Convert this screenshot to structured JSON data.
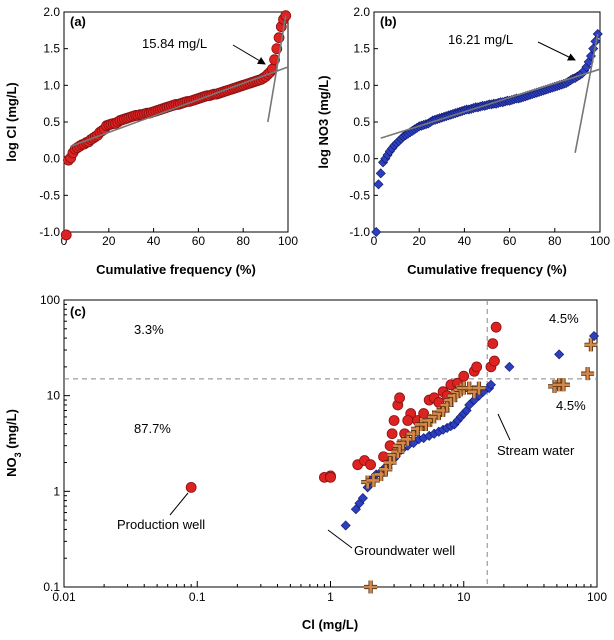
{
  "chart_data": [
    {
      "panel": "(a)",
      "type": "scatter",
      "xlabel": "Cumulative frequency (%)",
      "ylabel": "log Cl (mg/L)",
      "xlim": [
        0,
        100
      ],
      "ylim": [
        -1.0,
        2.0
      ],
      "xticks": [
        "0",
        "20",
        "40",
        "60",
        "80",
        "100"
      ],
      "yticks": [
        "-1.0",
        "-0.5",
        "0.0",
        "0.5",
        "1.0",
        "1.5",
        "2.0"
      ],
      "marker": "circle",
      "color": "#dd2222",
      "x": [
        1,
        2,
        3,
        4,
        5,
        6,
        7,
        8,
        9,
        10,
        11,
        12,
        13,
        14,
        15,
        16,
        17,
        18,
        19,
        20,
        21,
        22,
        23,
        24,
        25,
        26,
        27,
        28,
        29,
        30,
        31,
        32,
        33,
        34,
        35,
        36,
        37,
        38,
        39,
        40,
        41,
        42,
        43,
        44,
        45,
        46,
        47,
        48,
        49,
        50,
        51,
        52,
        53,
        54,
        55,
        56,
        57,
        58,
        59,
        60,
        61,
        62,
        63,
        64,
        65,
        66,
        67,
        68,
        69,
        70,
        71,
        72,
        73,
        74,
        75,
        76,
        77,
        78,
        79,
        80,
        81,
        82,
        83,
        84,
        85,
        86,
        87,
        88,
        89,
        90,
        91,
        92,
        93,
        94,
        95,
        96,
        97,
        98,
        99
      ],
      "y": [
        -1.04,
        -0.02,
        0.01,
        0.08,
        0.13,
        0.15,
        0.17,
        0.19,
        0.2,
        0.22,
        0.23,
        0.26,
        0.28,
        0.3,
        0.32,
        0.36,
        0.38,
        0.4,
        0.45,
        0.46,
        0.47,
        0.48,
        0.48,
        0.5,
        0.52,
        0.53,
        0.54,
        0.55,
        0.56,
        0.57,
        0.58,
        0.59,
        0.59,
        0.6,
        0.6,
        0.61,
        0.62,
        0.62,
        0.63,
        0.64,
        0.65,
        0.66,
        0.67,
        0.68,
        0.69,
        0.7,
        0.71,
        0.72,
        0.73,
        0.74,
        0.74,
        0.75,
        0.76,
        0.77,
        0.78,
        0.78,
        0.79,
        0.8,
        0.81,
        0.82,
        0.83,
        0.84,
        0.85,
        0.86,
        0.86,
        0.87,
        0.88,
        0.88,
        0.89,
        0.9,
        0.91,
        0.92,
        0.93,
        0.94,
        0.95,
        0.96,
        0.97,
        0.98,
        0.99,
        1.0,
        1.01,
        1.02,
        1.03,
        1.04,
        1.05,
        1.06,
        1.07,
        1.08,
        1.1,
        1.12,
        1.15,
        1.18,
        1.22,
        1.35,
        1.5,
        1.65,
        1.8,
        1.9,
        1.95
      ],
      "fit_lines": [
        {
          "x": [
            3,
            100
          ],
          "y": [
            0.17,
            1.25
          ]
        },
        {
          "x": [
            91,
            99
          ],
          "y": [
            0.5,
            1.95
          ]
        }
      ],
      "annotation": {
        "text": "15.84 mg/L",
        "x": 93,
        "y": 1.2
      }
    },
    {
      "panel": "(b)",
      "type": "scatter",
      "xlabel": "Cumulative frequency (%)",
      "ylabel": "log NO3 (mg/L)",
      "xlim": [
        0,
        100
      ],
      "ylim": [
        -1.0,
        2.0
      ],
      "xticks": [
        "0",
        "20",
        "40",
        "60",
        "80",
        "100"
      ],
      "yticks": [
        "-1.0",
        "-0.5",
        "0.0",
        "0.5",
        "1.0",
        "1.5",
        "2.0"
      ],
      "marker": "diamond",
      "color": "#2c3fbf",
      "x": [
        1,
        2,
        3,
        4,
        5,
        6,
        7,
        8,
        9,
        10,
        11,
        12,
        13,
        14,
        15,
        16,
        17,
        18,
        19,
        20,
        21,
        22,
        23,
        24,
        25,
        26,
        27,
        28,
        29,
        30,
        31,
        32,
        33,
        34,
        35,
        36,
        37,
        38,
        39,
        40,
        41,
        42,
        43,
        44,
        45,
        46,
        47,
        48,
        49,
        50,
        51,
        52,
        53,
        54,
        55,
        56,
        57,
        58,
        59,
        60,
        61,
        62,
        63,
        64,
        65,
        66,
        67,
        68,
        69,
        70,
        71,
        72,
        73,
        74,
        75,
        76,
        77,
        78,
        79,
        80,
        81,
        82,
        83,
        84,
        85,
        86,
        87,
        88,
        89,
        90,
        91,
        92,
        93,
        94,
        95,
        96,
        97,
        98,
        99
      ],
      "y": [
        -1.0,
        -0.35,
        -0.2,
        -0.05,
        0.0,
        0.05,
        0.1,
        0.14,
        0.18,
        0.21,
        0.24,
        0.27,
        0.3,
        0.32,
        0.34,
        0.36,
        0.38,
        0.4,
        0.42,
        0.44,
        0.45,
        0.46,
        0.47,
        0.48,
        0.5,
        0.52,
        0.53,
        0.54,
        0.55,
        0.56,
        0.57,
        0.58,
        0.59,
        0.6,
        0.61,
        0.62,
        0.63,
        0.64,
        0.65,
        0.66,
        0.67,
        0.67,
        0.68,
        0.69,
        0.7,
        0.7,
        0.71,
        0.72,
        0.72,
        0.73,
        0.74,
        0.74,
        0.75,
        0.75,
        0.76,
        0.77,
        0.77,
        0.78,
        0.79,
        0.79,
        0.8,
        0.81,
        0.82,
        0.82,
        0.83,
        0.84,
        0.85,
        0.86,
        0.87,
        0.88,
        0.89,
        0.9,
        0.91,
        0.92,
        0.93,
        0.94,
        0.95,
        0.96,
        0.97,
        0.98,
        0.99,
        1.0,
        1.01,
        1.02,
        1.03,
        1.05,
        1.07,
        1.09,
        1.1,
        1.12,
        1.14,
        1.16,
        1.2,
        1.25,
        1.32,
        1.4,
        1.5,
        1.6,
        1.7
      ],
      "fit_lines": [
        {
          "x": [
            3,
            100
          ],
          "y": [
            0.28,
            1.22
          ]
        },
        {
          "x": [
            89,
            99
          ],
          "y": [
            0.08,
            1.7
          ]
        }
      ],
      "annotation": {
        "text": "16.21 mg/L",
        "x": 92,
        "y": 1.18
      }
    },
    {
      "panel": "(c)",
      "type": "scatter",
      "xscale": "log",
      "yscale": "log",
      "xlabel": "Cl (mg/L)",
      "ylabel_main": "NO",
      "ylabel_sub": "3",
      "ylabel_unit": " (mg/L)",
      "xlim": [
        0.01,
        100
      ],
      "ylim": [
        0.1,
        100
      ],
      "xticks": [
        "0.01",
        "0.1",
        "1",
        "10",
        "100"
      ],
      "yticks": [
        "0.1",
        "1",
        "10",
        "100"
      ],
      "thresholds": {
        "x": 15,
        "y": 15
      },
      "quadrant_labels": [
        "3.3%",
        "87.7%",
        "4.5%",
        "4.5%"
      ],
      "series": [
        {
          "name": "Production well",
          "marker": "circle",
          "color": "#dd2222",
          "x": [
            0.09,
            0.9,
            1.0,
            1.0,
            1.6,
            1.8,
            2.0,
            2.5,
            2.8,
            2.9,
            3.0,
            3.2,
            3.3,
            3.6,
            4.0,
            3.8,
            4.5,
            5.0,
            5.5,
            6.0,
            6.5,
            7.0,
            7.5,
            8.0,
            9.0,
            10.0,
            12.0,
            12.5,
            16.0,
            17.0,
            16.5,
            17.5
          ],
          "y": [
            1.1,
            1.4,
            1.45,
            1.4,
            1.9,
            2.1,
            1.9,
            2.3,
            3.0,
            4.0,
            5.5,
            8.0,
            9.5,
            4.0,
            6.5,
            5.5,
            5.5,
            6.5,
            9.0,
            9.5,
            8.5,
            11.0,
            10.0,
            13.0,
            13.5,
            16.0,
            18.0,
            20.0,
            20.0,
            23.0,
            35.0,
            52.0
          ]
        },
        {
          "name": "Groundwater well",
          "marker": "diamond",
          "color": "#2c3fbf",
          "x": [
            1.3,
            1.55,
            1.65,
            1.75,
            1.9,
            2.0,
            2.2,
            2.4,
            2.6,
            2.8,
            3.0,
            3.2,
            3.5,
            3.8,
            4.2,
            4.6,
            5.0,
            5.5,
            6.0,
            6.5,
            7.0,
            7.5,
            8.0,
            8.5,
            9.0,
            9.5,
            10.0,
            10.5,
            11.0,
            12.0,
            13.0,
            14.0,
            15.5,
            16.0,
            22.0,
            52.0,
            95.0
          ],
          "y": [
            0.44,
            0.65,
            0.75,
            0.85,
            1.1,
            1.3,
            1.5,
            1.6,
            1.8,
            2.0,
            2.2,
            2.5,
            2.8,
            3.0,
            3.2,
            3.5,
            3.6,
            3.8,
            4.0,
            4.2,
            4.4,
            4.6,
            4.8,
            5.0,
            5.5,
            6.0,
            6.5,
            7.0,
            8.0,
            9.0,
            10.0,
            11.0,
            12.0,
            13.0,
            20.0,
            27.0,
            42.0
          ]
        },
        {
          "name": "Stream water",
          "marker": "plus",
          "color": "#d4884a",
          "x": [
            2.0,
            1.9,
            2.1,
            2.4,
            2.6,
            2.8,
            3.0,
            3.2,
            3.3,
            3.5,
            3.8,
            4.2,
            4.5,
            4.8,
            5.2,
            5.5,
            6.0,
            6.5,
            7.0,
            7.5,
            8.0,
            8.5,
            9.0,
            9.5,
            10.0,
            11.0,
            12.0,
            13.0,
            48.0,
            52.0,
            56.0,
            85.0,
            90.0
          ],
          "y": [
            0.1,
            1.25,
            1.3,
            1.5,
            1.7,
            2.0,
            2.4,
            2.6,
            3.0,
            3.2,
            3.5,
            4.0,
            4.5,
            5.0,
            5.0,
            5.5,
            6.0,
            6.5,
            7.0,
            8.0,
            9.0,
            10.0,
            11.0,
            11.5,
            12.0,
            12.0,
            11.0,
            12.0,
            12.5,
            13.0,
            13.0,
            17.0,
            34.0
          ]
        }
      ],
      "annotations": [
        {
          "text": "Production well",
          "series": 0
        },
        {
          "text": "Groundwater well",
          "series": 1
        },
        {
          "text": "Stream water",
          "series": 2
        }
      ]
    }
  ]
}
